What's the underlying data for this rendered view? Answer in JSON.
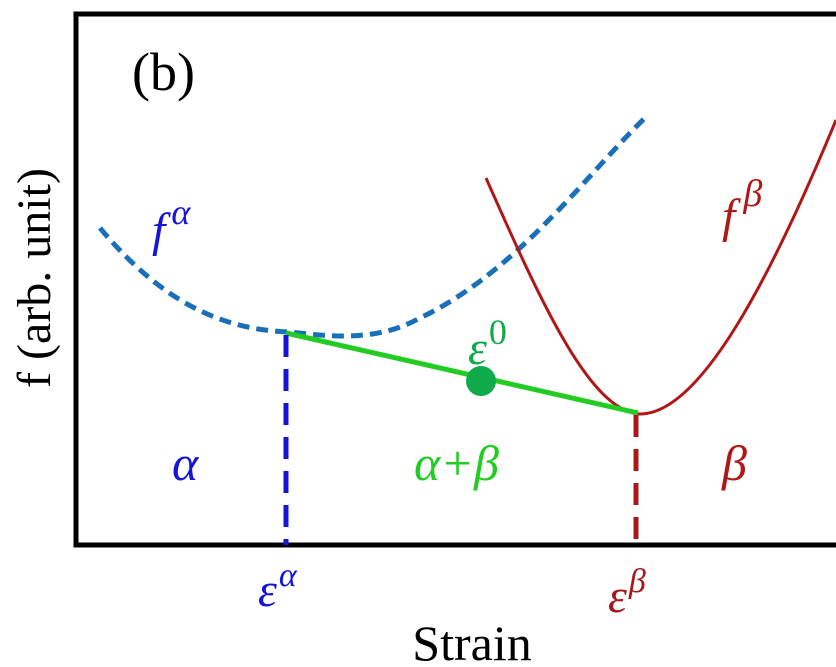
{
  "panel_label": "(b)",
  "y_axis_label": "f (arb. unit)",
  "x_axis_label": "Strain",
  "curve_alpha_label": "f",
  "curve_alpha_sup": "α",
  "curve_beta_label": "f",
  "curve_beta_sup": "β",
  "point_label": "ε",
  "point_label_sup": "0",
  "region_alpha": "α",
  "region_mixed": "α+β",
  "region_beta": "β",
  "tick_alpha": "ε",
  "tick_alpha_sup": "α",
  "tick_beta": "ε",
  "tick_beta_sup": "β",
  "colors": {
    "alpha_curve": "#1a70b8",
    "alpha_text": "#1515d8",
    "beta": "#b01818",
    "tie_line": "#22cc22",
    "point": "#0faa4a"
  }
}
